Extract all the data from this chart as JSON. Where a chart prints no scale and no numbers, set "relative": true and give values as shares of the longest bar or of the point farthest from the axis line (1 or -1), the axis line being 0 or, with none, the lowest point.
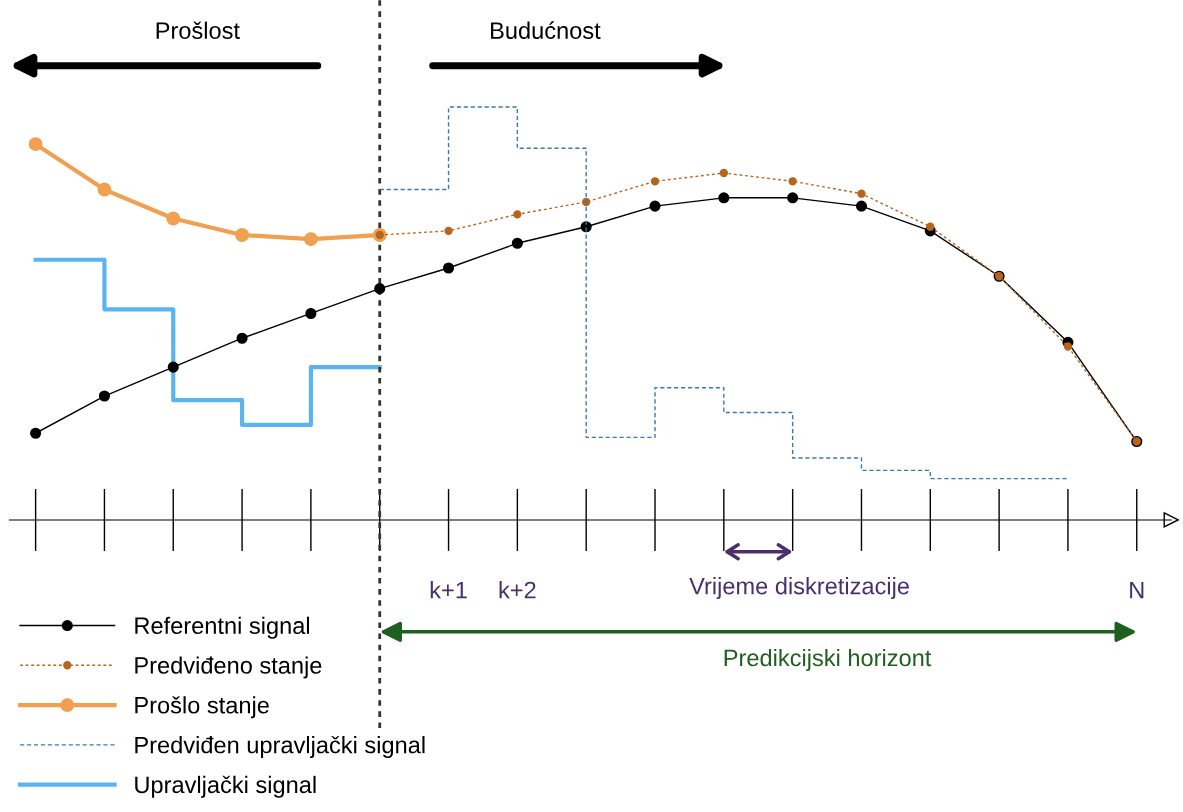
{
  "chart_data": {
    "type": "line",
    "relative": true,
    "categories": [
      null,
      null,
      null,
      null,
      null,
      null,
      "k+1",
      "k+2",
      null,
      null,
      null,
      null,
      null,
      null,
      null,
      null,
      "N"
    ],
    "tick_labels": "x",
    "legend": "bottom left",
    "series": [
      {
        "name": "Referentni signal",
        "color": "#000000",
        "marker": "circle",
        "line_style": "solid",
        "values": [
          0.21,
          0.3,
          0.37,
          0.44,
          0.5,
          0.56,
          0.61,
          0.67,
          0.71,
          0.76,
          0.78,
          0.78,
          0.76,
          0.7,
          0.59,
          0.43,
          0.19
        ]
      },
      {
        "name": "Predviđeno stanje",
        "color": "#b5651d",
        "marker": "circle",
        "line_style": "dotted",
        "values": [
          null,
          null,
          null,
          null,
          null,
          0.69,
          0.7,
          0.74,
          0.77,
          0.82,
          0.84,
          0.82,
          0.79,
          0.71,
          0.59,
          0.42,
          0.19
        ]
      },
      {
        "name": "Prošlo stanje",
        "color": "#f0a050",
        "marker": "circle",
        "line_style": "solid",
        "values": [
          0.91,
          0.8,
          0.73,
          0.69,
          0.68,
          0.69,
          null,
          null,
          null,
          null,
          null,
          null,
          null,
          null,
          null,
          null,
          null
        ]
      },
      {
        "name": "Predviđen upravljački signal",
        "type": "step",
        "color": "#3a78b5",
        "marker": "none",
        "line_style": "dashed",
        "values": [
          null,
          null,
          null,
          null,
          null,
          0.8,
          1,
          0.9,
          0.2,
          0.32,
          0.26,
          0.15,
          0.12,
          0.1,
          0.1,
          0.1,
          null
        ]
      },
      {
        "name": "Upravljački signal",
        "type": "step",
        "color": "#5ab4f0",
        "marker": "none",
        "line_style": "solid",
        "values": [
          0.63,
          0.51,
          0.29,
          0.23,
          0.37,
          0.37,
          null,
          null,
          null,
          null,
          null,
          null,
          null,
          null,
          null,
          null,
          null
        ]
      }
    ],
    "annotations": [
      "Prošlost",
      "Budućnost",
      "Vrijeme diskretizacije",
      "Predikcijski horizont"
    ]
  }
}
